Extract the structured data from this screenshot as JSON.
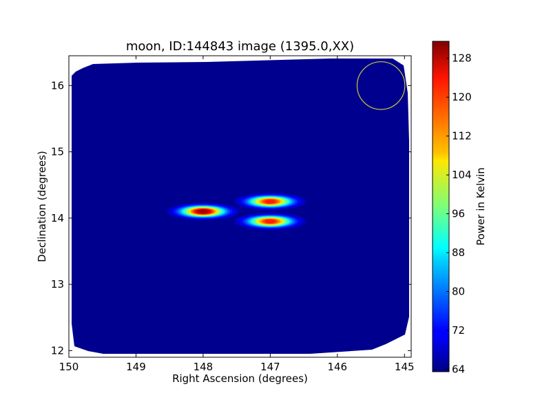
{
  "chart_data": {
    "type": "heatmap",
    "title": "moon, ID:144843 image (1395.0,XX)",
    "xlabel": "Right Ascension (degrees)",
    "ylabel": "Declination (degrees)",
    "xlim": [
      150.0,
      144.9
    ],
    "ylim": [
      11.9,
      16.45
    ],
    "x_inverted": true,
    "x_ticks": [
      150,
      149,
      148,
      147,
      146,
      145
    ],
    "y_ticks": [
      12,
      13,
      14,
      15,
      16
    ],
    "grid": false,
    "colormap": "jet",
    "colorbar": {
      "label": "Power in Kelvin",
      "min": 63.5,
      "max": 131.5,
      "ticks": [
        64,
        72,
        80,
        88,
        96,
        104,
        112,
        120,
        128
      ]
    },
    "background_level": 65,
    "blobs": [
      {
        "ra": 148.0,
        "dec": 14.1,
        "peak": 130
      },
      {
        "ra": 147.0,
        "dec": 14.25,
        "peak": 122
      },
      {
        "ra": 147.0,
        "dec": 13.95,
        "peak": 122
      }
    ],
    "circle_marker": {
      "ra": 145.35,
      "dec": 16.0,
      "radius_deg": 0.36,
      "color": "#cccc33"
    }
  }
}
